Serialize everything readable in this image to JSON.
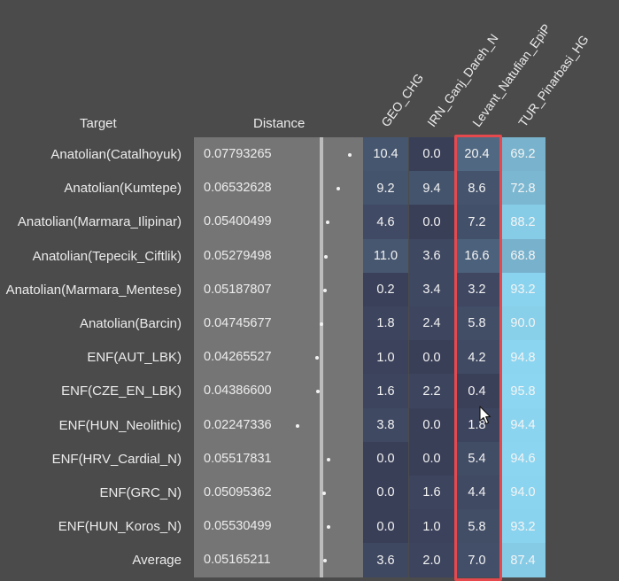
{
  "headers": {
    "target": "Target",
    "distance": "Distance"
  },
  "columns": [
    "GEO_CHG",
    "IRN_Ganj_Dareh_N",
    "Levant_Natufian_EpiP",
    "TUR_Pinarbasi_HG"
  ],
  "rows": [
    {
      "target": "Anatolian(Catalhoyuk)",
      "distance": "0.07793265",
      "values": [
        "10.4",
        "0.0",
        "20.4",
        "69.2"
      ]
    },
    {
      "target": "Anatolian(Kumtepe)",
      "distance": "0.06532628",
      "values": [
        "9.2",
        "9.4",
        "8.6",
        "72.8"
      ]
    },
    {
      "target": "Anatolian(Marmara_Ilipinar)",
      "distance": "0.05400499",
      "values": [
        "4.6",
        "0.0",
        "7.2",
        "88.2"
      ]
    },
    {
      "target": "Anatolian(Tepecik_Ciftlik)",
      "distance": "0.05279498",
      "values": [
        "11.0",
        "3.6",
        "16.6",
        "68.8"
      ]
    },
    {
      "target": "Anatolian(Marmara_Mentese)",
      "distance": "0.05187807",
      "values": [
        "0.2",
        "3.4",
        "3.2",
        "93.2"
      ]
    },
    {
      "target": "Anatolian(Barcin)",
      "distance": "0.04745677",
      "values": [
        "1.8",
        "2.4",
        "5.8",
        "90.0"
      ]
    },
    {
      "target": "ENF(AUT_LBK)",
      "distance": "0.04265527",
      "values": [
        "1.0",
        "0.0",
        "4.2",
        "94.8"
      ]
    },
    {
      "target": "ENF(CZE_EN_LBK)",
      "distance": "0.04386600",
      "values": [
        "1.6",
        "2.2",
        "0.4",
        "95.8"
      ]
    },
    {
      "target": "ENF(HUN_Neolithic)",
      "distance": "0.02247336",
      "values": [
        "3.8",
        "0.0",
        "1.8",
        "94.4"
      ]
    },
    {
      "target": "ENF(HRV_Cardial_N)",
      "distance": "0.05517831",
      "values": [
        "0.0",
        "0.0",
        "5.4",
        "94.6"
      ]
    },
    {
      "target": "ENF(GRC_N)",
      "distance": "0.05095362",
      "values": [
        "0.0",
        "1.6",
        "4.4",
        "94.0"
      ]
    },
    {
      "target": "ENF(HUN_Koros_N)",
      "distance": "0.05530499",
      "values": [
        "0.0",
        "1.0",
        "5.8",
        "93.2"
      ]
    },
    {
      "target": "Average",
      "distance": "0.05165211",
      "values": [
        "3.6",
        "2.0",
        "7.0",
        "87.4"
      ]
    }
  ],
  "colors": {
    "background": "#4b4b4b",
    "distance_panel": "#757575",
    "heat_low": "#3a3f58",
    "heat_high": "#8fdcf7",
    "highlight": "#e5484d"
  },
  "icons": {
    "cursor": "mouse-pointer-icon"
  }
}
